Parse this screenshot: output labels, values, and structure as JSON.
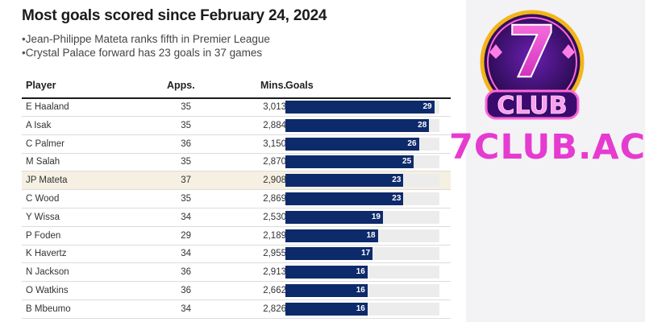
{
  "title": "Most goals scored since February 24, 2024",
  "bullets": [
    "Jean-Philippe Mateta ranks fifth in Premier League",
    "Crystal Palace forward has 23 goals in 37 games"
  ],
  "brand": {
    "logo_text": "CLUB",
    "logo_numeral": "7",
    "site": "7CLUB.AC",
    "colors": {
      "pink": "#e63bd0",
      "purple": "#3b0a6e",
      "gold": "#f2b51b"
    }
  },
  "chart_data": {
    "type": "table",
    "title": "Most goals scored since February 24, 2024",
    "columns": [
      "Player",
      "Apps.",
      "Mins.",
      "Goals"
    ],
    "bar_max": 30,
    "bar_color": "#0d2a6b",
    "highlight_color": "#f6f0e2",
    "rows": [
      {
        "player": "E Haaland",
        "apps": "35",
        "mins": "3,013",
        "goals": 29,
        "highlight": false
      },
      {
        "player": "A Isak",
        "apps": "35",
        "mins": "2,884",
        "goals": 28,
        "highlight": false
      },
      {
        "player": "C Palmer",
        "apps": "36",
        "mins": "3,150",
        "goals": 26,
        "highlight": false
      },
      {
        "player": "M Salah",
        "apps": "35",
        "mins": "2,870",
        "goals": 25,
        "highlight": false
      },
      {
        "player": "JP Mateta",
        "apps": "37",
        "mins": "2,908",
        "goals": 23,
        "highlight": true
      },
      {
        "player": "C Wood",
        "apps": "35",
        "mins": "2,869",
        "goals": 23,
        "highlight": false
      },
      {
        "player": "Y Wissa",
        "apps": "34",
        "mins": "2,530",
        "goals": 19,
        "highlight": false
      },
      {
        "player": "P Foden",
        "apps": "29",
        "mins": "2,189",
        "goals": 18,
        "highlight": false
      },
      {
        "player": "K Havertz",
        "apps": "34",
        "mins": "2,955",
        "goals": 17,
        "highlight": false
      },
      {
        "player": "N Jackson",
        "apps": "36",
        "mins": "2,913",
        "goals": 16,
        "highlight": false
      },
      {
        "player": "O Watkins",
        "apps": "36",
        "mins": "2,662",
        "goals": 16,
        "highlight": false
      },
      {
        "player": "B Mbeumo",
        "apps": "34",
        "mins": "2,826",
        "goals": 16,
        "highlight": false
      }
    ]
  }
}
